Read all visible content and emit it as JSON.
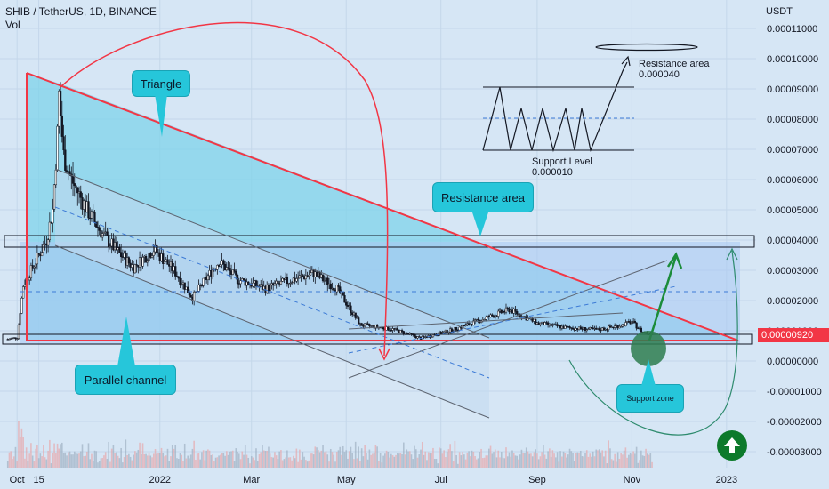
{
  "header": {
    "title": "SHIB / TetherUS, 1D, BINANCE",
    "vol_label": "Vol"
  },
  "axis": {
    "currency": "USDT",
    "last_price": "0.00000920"
  },
  "annotations": {
    "triangle": "Triangle",
    "parallel_channel": "Parallel channel",
    "resistance_area": "Resistance area",
    "support_zone": "Support zone",
    "resistance_note_title": "Resistance area",
    "resistance_note_value": "0.000040",
    "support_note_title": "Support Level",
    "support_note_value": "0.000010"
  },
  "colors": {
    "background": "#d6e6f5",
    "candle": "#131722",
    "triangle_fill": "#7fd3ea",
    "triangle_line": "#f23645",
    "channel_line": "#5d6470",
    "box_fill": "#a9c8f2",
    "callout": "#26c6da",
    "support_circle": "#2e7d4f",
    "arrow": "#1b8c3a",
    "price_tag": "#f23645"
  },
  "icons": {
    "up_button": "arrow-up-circle-icon"
  },
  "chart_data": {
    "type": "candlestick",
    "symbol": "SHIB / TetherUS",
    "interval": "1D",
    "exchange": "BINANCE",
    "y_unit": "USDT",
    "ylim": [
      -3.3e-05,
      0.000115
    ],
    "y_ticks": [
      "0.00011000",
      "0.00010000",
      "0.00009000",
      "0.00008000",
      "0.00007000",
      "0.00006000",
      "0.00005000",
      "0.00004000",
      "0.00003000",
      "0.00002000",
      "0.00001000",
      "0.00000000",
      "-0.00001000",
      "-0.00002000",
      "-0.00003000"
    ],
    "y_tick_values": [
      0.00011,
      0.0001,
      9e-05,
      8e-05,
      7e-05,
      6e-05,
      5e-05,
      4e-05,
      3e-05,
      2e-05,
      1e-05,
      0.0,
      -1e-05,
      -2e-05,
      -3e-05
    ],
    "x_ticks": [
      "Oct",
      "15",
      "2022",
      "Mar",
      "May",
      "Jul",
      "Sep",
      "Nov",
      "2023"
    ],
    "x_tick_dates": [
      "2021-10-01",
      "2021-10-15",
      "2022-01-01",
      "2022-03-01",
      "2022-05-01",
      "2022-07-01",
      "2022-09-01",
      "2022-11-01",
      "2023-01-01"
    ],
    "x_range": [
      "2021-09-20",
      "2023-01-20"
    ],
    "last_price": 9.2e-06,
    "price_series": [
      [
        "2021-09-25",
        7.2e-06
      ],
      [
        "2021-10-01",
        7.8e-06
      ],
      [
        "2021-10-05",
        2.5e-05
      ],
      [
        "2021-10-08",
        2.8e-05
      ],
      [
        "2021-10-12",
        3.2e-05
      ],
      [
        "2021-10-20",
        4e-05
      ],
      [
        "2021-10-24",
        5e-05
      ],
      [
        "2021-10-27",
        7.5e-05
      ],
      [
        "2021-10-28",
        8.8e-05
      ],
      [
        "2021-10-31",
        6.8e-05
      ],
      [
        "2021-11-05",
        6e-05
      ],
      [
        "2021-11-15",
        5e-05
      ],
      [
        "2021-11-25",
        4.2e-05
      ],
      [
        "2021-12-05",
        3.6e-05
      ],
      [
        "2021-12-15",
        3.1e-05
      ],
      [
        "2021-12-28",
        3.7e-05
      ],
      [
        "2022-01-10",
        3e-05
      ],
      [
        "2022-01-22",
        2.1e-05
      ],
      [
        "2022-02-08",
        3.3e-05
      ],
      [
        "2022-02-20",
        2.7e-05
      ],
      [
        "2022-03-10",
        2.4e-05
      ],
      [
        "2022-03-28",
        2.7e-05
      ],
      [
        "2022-04-10",
        2.9e-05
      ],
      [
        "2022-04-25",
        2.4e-05
      ],
      [
        "2022-05-10",
        1.2e-05
      ],
      [
        "2022-06-01",
        1.04e-05
      ],
      [
        "2022-06-18",
        7.5e-06
      ],
      [
        "2022-07-10",
        1.05e-05
      ],
      [
        "2022-08-14",
        1.7e-05
      ],
      [
        "2022-09-01",
        1.25e-05
      ],
      [
        "2022-09-20",
        1.1e-05
      ],
      [
        "2022-10-10",
        1.03e-05
      ],
      [
        "2022-10-25",
        1.18e-05
      ],
      [
        "2022-11-01",
        1.3e-05
      ],
      [
        "2022-11-08",
        9.5e-06
      ],
      [
        "2022-11-14",
        9.2e-06
      ]
    ],
    "volume_note": "volume histogram at bottom"
  }
}
